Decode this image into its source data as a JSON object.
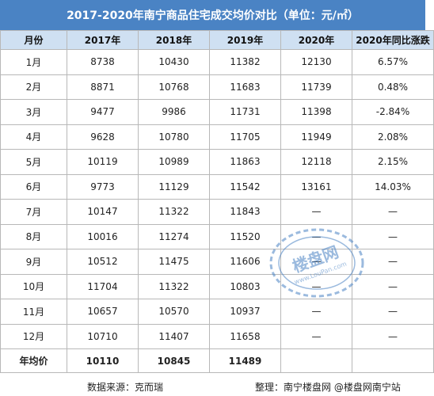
{
  "title": "2017-2020年南宁商品住宅成交均价对比（单位：元/㎡）",
  "headers": [
    "月份",
    "2017年",
    "2018年",
    "2019年",
    "2020年",
    "2020年同比涨跌"
  ],
  "rows": [
    {
      "month": "1月",
      "y2017": "8738",
      "y2018": "10430",
      "y2019": "11382",
      "y2020": "12130",
      "yoy": "6.57%"
    },
    {
      "month": "2月",
      "y2017": "8871",
      "y2018": "10768",
      "y2019": "11683",
      "y2020": "11739",
      "yoy": "0.48%"
    },
    {
      "month": "3月",
      "y2017": "9477",
      "y2018": "9986",
      "y2019": "11731",
      "y2020": "11398",
      "yoy": "-2.84%"
    },
    {
      "month": "4月",
      "y2017": "9628",
      "y2018": "10780",
      "y2019": "11705",
      "y2020": "11949",
      "yoy": "2.08%"
    },
    {
      "month": "5月",
      "y2017": "10119",
      "y2018": "10989",
      "y2019": "11863",
      "y2020": "12118",
      "yoy": "2.15%"
    },
    {
      "month": "6月",
      "y2017": "9773",
      "y2018": "11129",
      "y2019": "11542",
      "y2020": "13161",
      "yoy": "14.03%"
    },
    {
      "month": "7月",
      "y2017": "10147",
      "y2018": "11322",
      "y2019": "11843",
      "y2020": "—",
      "yoy": "—"
    },
    {
      "month": "8月",
      "y2017": "10016",
      "y2018": "11274",
      "y2019": "11520",
      "y2020": "—",
      "yoy": "—"
    },
    {
      "month": "9月",
      "y2017": "10512",
      "y2018": "11475",
      "y2019": "11606",
      "y2020": "—",
      "yoy": "—"
    },
    {
      "month": "10月",
      "y2017": "11704",
      "y2018": "11322",
      "y2019": "10803",
      "y2020": "—",
      "yoy": "—"
    },
    {
      "month": "11月",
      "y2017": "10657",
      "y2018": "10570",
      "y2019": "10937",
      "y2020": "—",
      "yoy": "—"
    },
    {
      "month": "12月",
      "y2017": "10710",
      "y2018": "11407",
      "y2019": "11658",
      "y2020": "—",
      "yoy": "—"
    }
  ],
  "average": {
    "month": "年均价",
    "y2017": "10110",
    "y2018": "10845",
    "y2019": "11489",
    "y2020": "",
    "yoy": ""
  },
  "source": {
    "left": "数据来源：克而瑞",
    "right": "整理：南宁楼盘网 @楼盘网南宁站"
  },
  "watermark": {
    "text": "楼盘网",
    "subtext": "www.LouPan.com"
  },
  "colors": {
    "title_bg": "#4a83c4",
    "header_bg": "#cfe0f2",
    "grid": "#b8b8b8",
    "watermark": "#4a83c4"
  }
}
